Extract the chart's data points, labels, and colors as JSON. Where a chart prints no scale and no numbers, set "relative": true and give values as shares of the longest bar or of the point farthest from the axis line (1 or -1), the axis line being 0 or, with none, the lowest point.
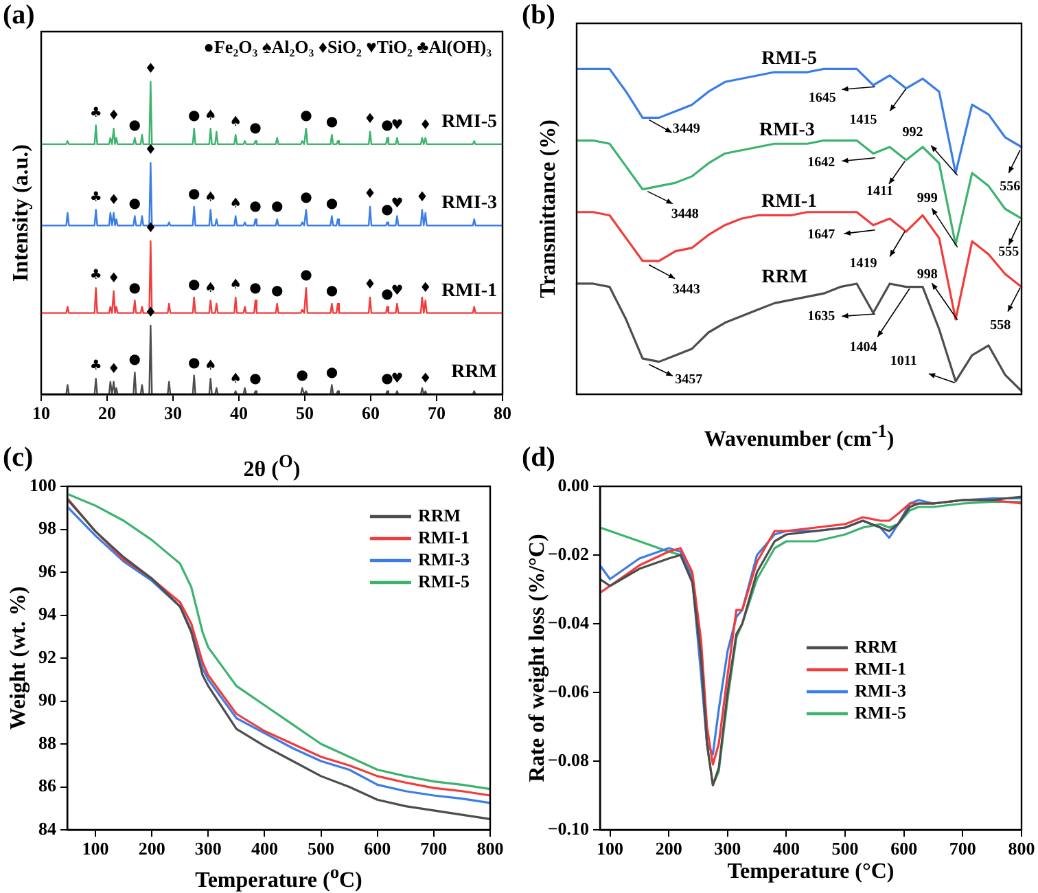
{
  "chart_data": [
    {
      "type": "line",
      "title": "(a)",
      "xlabel": "2θ ($^{O}$)",
      "ylabel": "Intensity (a.u.)",
      "relative": true,
      "tick_labels": "x",
      "legend": false,
      "xlim": [
        10,
        80
      ],
      "xticks": [
        10,
        20,
        30,
        40,
        50,
        60,
        70,
        80
      ],
      "x": [
        10,
        13.8,
        14,
        14.2,
        18.1,
        18.3,
        18.5,
        20.3,
        20.5,
        20.75,
        21,
        21.2,
        21.4,
        21.6,
        24,
        24.2,
        24.4,
        25.1,
        25.3,
        25.5,
        26.4,
        26.6,
        26.8,
        29.2,
        29.4,
        29.6,
        33,
        33.2,
        33.4,
        35.5,
        35.7,
        35.9,
        36.4,
        36.6,
        36.8,
        39.3,
        39.5,
        39.7,
        40.7,
        40.9,
        41.1,
        42.3,
        42.5,
        42.7,
        45.6,
        45.8,
        46,
        49.4,
        49.6,
        49.9,
        50.2,
        50.4,
        53.9,
        54.1,
        54.3,
        54.8,
        55,
        55.2,
        59.7,
        59.9,
        60.1,
        62.3,
        62.5,
        62.7,
        63.8,
        64,
        64.2,
        67.6,
        67.8,
        68.05,
        68.3,
        68.5,
        75.5,
        75.7,
        75.9,
        80
      ],
      "series": [
        {
          "name": "RRM",
          "color": "#4d4d4d",
          "values": [
            0,
            0,
            0.03,
            0,
            0,
            0.05,
            0,
            0,
            0.04,
            0,
            0.04,
            0,
            0.02,
            0,
            0,
            0.07,
            0,
            0,
            0.03,
            0,
            0,
            0.22,
            0,
            0,
            0.04,
            0,
            0,
            0.06,
            0,
            0,
            0.05,
            0,
            0,
            0.02,
            0,
            0,
            0.01,
            0,
            0,
            0.02,
            0,
            0,
            0.01,
            0,
            0,
            0,
            0,
            0,
            0.02,
            0,
            0.01,
            0,
            0,
            0.03,
            0,
            0,
            0.01,
            0,
            0,
            0,
            0,
            0,
            0.01,
            0,
            0,
            0.01,
            0,
            0,
            0.02,
            0,
            0.01,
            0,
            0,
            0.01,
            0,
            0
          ]
        },
        {
          "name": "RMI-1",
          "color": "#f23b3b",
          "values": [
            0.26,
            0.26,
            0.28,
            0.26,
            0.26,
            0.34,
            0.26,
            0.26,
            0.28,
            0.26,
            0.33,
            0.26,
            0.28,
            0.26,
            0.26,
            0.3,
            0.26,
            0.26,
            0.28,
            0.26,
            0.26,
            0.49,
            0.26,
            0.26,
            0.29,
            0.26,
            0.26,
            0.31,
            0.26,
            0.26,
            0.3,
            0.26,
            0.26,
            0.29,
            0.26,
            0.26,
            0.31,
            0.26,
            0.26,
            0.28,
            0.26,
            0.26,
            0.3,
            0.26,
            0.26,
            0.29,
            0.26,
            0.26,
            0.27,
            0.26,
            0.34,
            0.26,
            0.26,
            0.29,
            0.26,
            0.26,
            0.29,
            0.26,
            0.26,
            0.31,
            0.26,
            0.26,
            0.28,
            0.26,
            0.26,
            0.29,
            0.26,
            0.26,
            0.31,
            0.26,
            0.3,
            0.26,
            0.26,
            0.28,
            0.26,
            0.26
          ]
        },
        {
          "name": "RMI-3",
          "color": "#3a7de6",
          "values": [
            0.54,
            0.54,
            0.58,
            0.54,
            0.54,
            0.59,
            0.54,
            0.54,
            0.58,
            0.54,
            0.58,
            0.54,
            0.56,
            0.54,
            0.54,
            0.57,
            0.54,
            0.54,
            0.57,
            0.54,
            0.54,
            0.74,
            0.54,
            0.54,
            0.55,
            0.54,
            0.54,
            0.6,
            0.54,
            0.54,
            0.59,
            0.54,
            0.54,
            0.56,
            0.54,
            0.54,
            0.57,
            0.54,
            0.54,
            0.55,
            0.54,
            0.54,
            0.56,
            0.54,
            0.54,
            0.56,
            0.54,
            0.54,
            0.55,
            0.54,
            0.59,
            0.54,
            0.54,
            0.57,
            0.54,
            0.54,
            0.56,
            0.54,
            0.54,
            0.6,
            0.54,
            0.54,
            0.55,
            0.54,
            0.54,
            0.57,
            0.54,
            0.54,
            0.59,
            0.54,
            0.58,
            0.54,
            0.54,
            0.56,
            0.54,
            0.54
          ]
        },
        {
          "name": "RMI-5",
          "color": "#3cb36e",
          "values": [
            0.8,
            0.8,
            0.81,
            0.8,
            0.8,
            0.86,
            0.8,
            0.8,
            0.82,
            0.8,
            0.85,
            0.8,
            0.82,
            0.8,
            0.8,
            0.82,
            0.8,
            0.8,
            0.83,
            0.8,
            0.8,
            1,
            0.8,
            0.8,
            0.8,
            0.8,
            0.8,
            0.85,
            0.8,
            0.8,
            0.85,
            0.8,
            0.8,
            0.84,
            0.8,
            0.8,
            0.83,
            0.8,
            0.8,
            0.81,
            0.8,
            0.8,
            0.81,
            0.8,
            0.8,
            0.82,
            0.8,
            0.8,
            0.81,
            0.8,
            0.85,
            0.8,
            0.8,
            0.83,
            0.8,
            0.8,
            0.81,
            0.8,
            0.8,
            0.84,
            0.8,
            0.8,
            0.82,
            0.8,
            0.8,
            0.82,
            0.8,
            0.8,
            0.82,
            0.8,
            0.82,
            0.8,
            0.8,
            0.81,
            0.8,
            0.8
          ]
        }
      ],
      "annotations": [
        "●Fe₂O₃ ♠Al₂O₃ ♦SiO₂ ♥TiO₂ ♣Al(OH)₃",
        {
          "text": "♣",
          "x": 18.3,
          "y": 0.86
        },
        {
          "text": "♦",
          "x": 21,
          "y": 0.85
        },
        {
          "text": "●",
          "x": 24.2,
          "y": 0.82
        },
        {
          "text": "♦",
          "x": 26.6,
          "y": 1
        },
        {
          "text": "●",
          "x": 33.2,
          "y": 0.85
        },
        {
          "text": "♠",
          "x": 35.7,
          "y": 0.85
        },
        {
          "text": "♠",
          "x": 39.5,
          "y": 0.83
        },
        {
          "text": "●",
          "x": 42.5,
          "y": 0.81
        },
        {
          "text": "●",
          "x": 50.2,
          "y": 0.85
        },
        {
          "text": "●",
          "x": 54.1,
          "y": 0.83
        },
        {
          "text": "♦",
          "x": 59.9,
          "y": 0.84
        },
        {
          "text": "●",
          "x": 62.5,
          "y": 0.82
        },
        {
          "text": "♥",
          "x": 64,
          "y": 0.82
        },
        {
          "text": "♦",
          "x": 68.3,
          "y": 0.82
        },
        {
          "text": "♣",
          "x": 18.3,
          "y": 0.59
        },
        {
          "text": "♦",
          "x": 21,
          "y": 0.58
        },
        {
          "text": "●",
          "x": 24.2,
          "y": 0.57
        },
        {
          "text": "♦",
          "x": 26.6,
          "y": 0.74
        },
        {
          "text": "●",
          "x": 33.2,
          "y": 0.6
        },
        {
          "text": "♠",
          "x": 35.7,
          "y": 0.59
        },
        {
          "text": "♠",
          "x": 39.5,
          "y": 0.57
        },
        {
          "text": "●",
          "x": 42.5,
          "y": 0.56
        },
        {
          "text": "●",
          "x": 45.8,
          "y": 0.56
        },
        {
          "text": "●",
          "x": 50.2,
          "y": 0.59
        },
        {
          "text": "●",
          "x": 54.1,
          "y": 0.57
        },
        {
          "text": "♦",
          "x": 59.9,
          "y": 0.6
        },
        {
          "text": "●",
          "x": 62.5,
          "y": 0.55
        },
        {
          "text": "♥",
          "x": 64,
          "y": 0.57
        },
        {
          "text": "♦",
          "x": 67.8,
          "y": 0.59
        },
        {
          "text": "♣",
          "x": 18.3,
          "y": 0.34
        },
        {
          "text": "♦",
          "x": 21,
          "y": 0.33
        },
        {
          "text": "●",
          "x": 24.2,
          "y": 0.3
        },
        {
          "text": "♦",
          "x": 26.6,
          "y": 0.49
        },
        {
          "text": "●",
          "x": 33.2,
          "y": 0.31
        },
        {
          "text": "♠",
          "x": 35.7,
          "y": 0.3
        },
        {
          "text": "♠",
          "x": 39.5,
          "y": 0.31
        },
        {
          "text": "●",
          "x": 42.5,
          "y": 0.3
        },
        {
          "text": "●",
          "x": 45.8,
          "y": 0.29
        },
        {
          "text": "●",
          "x": 50.2,
          "y": 0.34
        },
        {
          "text": "●",
          "x": 54.1,
          "y": 0.29
        },
        {
          "text": "♦",
          "x": 59.9,
          "y": 0.31
        },
        {
          "text": "●",
          "x": 62.5,
          "y": 0.28
        },
        {
          "text": "♥",
          "x": 64,
          "y": 0.29
        },
        {
          "text": "♦",
          "x": 68.3,
          "y": 0.3
        },
        {
          "text": "♣",
          "x": 18.3,
          "y": 0.05
        },
        {
          "text": "♦",
          "x": 21,
          "y": 0.04
        },
        {
          "text": "●",
          "x": 24.2,
          "y": 0.07
        },
        {
          "text": "♦",
          "x": 26.6,
          "y": 0.22
        },
        {
          "text": "●",
          "x": 33.2,
          "y": 0.06
        },
        {
          "text": "♠",
          "x": 35.7,
          "y": 0.05
        },
        {
          "text": "♠",
          "x": 39.5,
          "y": 0.01
        },
        {
          "text": "●",
          "x": 42.5,
          "y": 0.01
        },
        {
          "text": "●",
          "x": 49.6,
          "y": 0.02
        },
        {
          "text": "●",
          "x": 54.1,
          "y": 0.03
        },
        {
          "text": "●",
          "x": 62.5,
          "y": 0.01
        },
        {
          "text": "♥",
          "x": 64,
          "y": 0.01
        },
        {
          "text": "♦",
          "x": 68.3,
          "y": 0.01
        }
      ]
    },
    {
      "type": "line",
      "title": "(b)",
      "xlabel": "Wavenumber (cm$^{-1}$)",
      "ylabel": "Transmittance (%)",
      "relative": true,
      "tick_labels": false,
      "legend": false,
      "categories": [
        null,
        null,
        null,
        null,
        null,
        null,
        null,
        null,
        null,
        null,
        null,
        null,
        null,
        null,
        null,
        null,
        null,
        null,
        null,
        null,
        null,
        null,
        null,
        null,
        null,
        null,
        null,
        null
      ],
      "series": [
        {
          "name": "RRM",
          "color": "#4d4d4d",
          "values": [
            0.34,
            0.34,
            0.33,
            0.23,
            0.11,
            0.1,
            0.12,
            0.14,
            0.19,
            0.22,
            0.24,
            0.26,
            0.28,
            0.29,
            0.3,
            0.31,
            0.33,
            0.34,
            0.25,
            0.34,
            0.33,
            0.33,
            0.2,
            0.04,
            0.12,
            0.15,
            0.06,
            0.01
          ]
        },
        {
          "name": "RMI-1",
          "color": "#f23b3b",
          "values": [
            0.56,
            0.56,
            0.55,
            0.48,
            0.41,
            0.41,
            0.44,
            0.45,
            0.49,
            0.52,
            0.54,
            0.55,
            0.55,
            0.55,
            0.56,
            0.56,
            0.56,
            0.56,
            0.52,
            0.54,
            0.5,
            0.55,
            0.48,
            0.23,
            0.47,
            0.43,
            0.37,
            0.33
          ]
        },
        {
          "name": "RMI-3",
          "color": "#3cb36e",
          "values": [
            0.78,
            0.78,
            0.77,
            0.7,
            0.63,
            0.64,
            0.65,
            0.67,
            0.71,
            0.74,
            0.75,
            0.76,
            0.77,
            0.77,
            0.77,
            0.78,
            0.78,
            0.78,
            0.74,
            0.76,
            0.72,
            0.76,
            0.71,
            0.46,
            0.68,
            0.64,
            0.57,
            0.54
          ]
        },
        {
          "name": "RMI-5",
          "color": "#3a7de6",
          "values": [
            1,
            1,
            1,
            0.93,
            0.85,
            0.85,
            0.87,
            0.89,
            0.93,
            0.96,
            0.97,
            0.98,
            0.99,
            0.99,
            0.99,
            1,
            1,
            1,
            0.95,
            0.98,
            0.94,
            0.97,
            0.93,
            0.68,
            0.89,
            0.86,
            0.79,
            0.76
          ]
        }
      ],
      "annotations": [
        "3449",
        "1645",
        "1415",
        "992",
        "556",
        "3448",
        "1642",
        "1411",
        "999",
        "555",
        "3443",
        "1647",
        "1419",
        "998",
        "558",
        "3457",
        "1635",
        "1404",
        "1011"
      ]
    },
    {
      "type": "line",
      "title": "(c)",
      "xlabel": "Temperature ($^{o}$C)",
      "ylabel": "Weight (wt. %)",
      "legend": "top right",
      "xlim": [
        50,
        800
      ],
      "xticks": [
        100,
        200,
        300,
        400,
        500,
        600,
        700,
        800
      ],
      "ylim": [
        84,
        100
      ],
      "yticks": [
        84,
        86,
        88,
        90,
        92,
        94,
        96,
        98,
        100
      ],
      "x": [
        50,
        100,
        150,
        200,
        250,
        270,
        290,
        300,
        350,
        400,
        450,
        500,
        550,
        600,
        650,
        700,
        750,
        800
      ],
      "series": [
        {
          "name": "RRM",
          "color": "#4d4d4d",
          "values": [
            99.4,
            97.9,
            96.7,
            95.7,
            94.4,
            93.2,
            91.2,
            90.7,
            88.7,
            87.9,
            87.2,
            86.5,
            86.0,
            85.4,
            85.1,
            84.9,
            84.7,
            84.5
          ]
        },
        {
          "name": "RMI-1",
          "color": "#f23b3b",
          "values": [
            99.45,
            97.9,
            96.6,
            95.7,
            94.6,
            93.6,
            91.8,
            91.2,
            89.4,
            88.6,
            88.0,
            87.4,
            87.0,
            86.5,
            86.2,
            85.95,
            85.8,
            85.6
          ]
        },
        {
          "name": "RMI-3",
          "color": "#3a7de6",
          "values": [
            99.05,
            97.7,
            96.5,
            95.6,
            94.4,
            93.3,
            91.5,
            91.0,
            89.2,
            88.5,
            87.8,
            87.2,
            86.8,
            86.1,
            85.8,
            85.6,
            85.45,
            85.25
          ]
        },
        {
          "name": "RMI-5",
          "color": "#3cb36e",
          "values": [
            99.65,
            99.1,
            98.4,
            97.5,
            96.4,
            95.3,
            93.2,
            92.5,
            90.7,
            89.8,
            88.9,
            88.0,
            87.4,
            86.8,
            86.5,
            86.25,
            86.1,
            85.9
          ]
        }
      ]
    },
    {
      "type": "line",
      "title": "(d)",
      "xlabel": "Temperature (°C)",
      "ylabel": "Rate of weight loss (%/°C)",
      "legend": "right",
      "xlim": [
        83,
        800
      ],
      "xticks": [
        100,
        200,
        300,
        400,
        500,
        600,
        700,
        800
      ],
      "ylim": [
        -0.1,
        0
      ],
      "yticks": [
        {
          "value": -0.1,
          "label": "−0.10"
        },
        {
          "value": -0.08,
          "label": "−0.08"
        },
        {
          "value": -0.06,
          "label": "−0.06"
        },
        {
          "value": -0.04,
          "label": "−0.04"
        },
        {
          "value": -0.02,
          "label": "−0.02"
        },
        {
          "value": 0,
          "label": "0.00"
        }
      ],
      "x": [
        83,
        100,
        150,
        200,
        220,
        240,
        255,
        265,
        275,
        285,
        300,
        315,
        325,
        350,
        380,
        400,
        450,
        500,
        530,
        560,
        575,
        590,
        610,
        625,
        650,
        700,
        750,
        800
      ],
      "series": [
        {
          "name": "RRM",
          "color": "#4d4d4d",
          "values": [
            -0.027,
            -0.029,
            -0.024,
            -0.021,
            -0.02,
            -0.028,
            -0.05,
            -0.075,
            -0.087,
            -0.082,
            -0.06,
            -0.043,
            -0.04,
            -0.025,
            -0.016,
            -0.014,
            -0.013,
            -0.012,
            -0.01,
            -0.012,
            -0.013,
            -0.011,
            -0.006,
            -0.005,
            -0.005,
            -0.004,
            -0.004,
            -0.003
          ]
        },
        {
          "name": "RMI-1",
          "color": "#f23b3b",
          "values": [
            -0.031,
            -0.029,
            -0.023,
            -0.019,
            -0.018,
            -0.025,
            -0.045,
            -0.07,
            -0.081,
            -0.075,
            -0.055,
            -0.036,
            -0.036,
            -0.022,
            -0.013,
            -0.013,
            -0.012,
            -0.011,
            -0.009,
            -0.01,
            -0.01,
            -0.008,
            -0.005,
            -0.005,
            -0.005,
            -0.004,
            -0.004,
            -0.005
          ]
        },
        {
          "name": "RMI-3",
          "color": "#3a7de6",
          "values": [
            -0.023,
            -0.027,
            -0.021,
            -0.018,
            -0.019,
            -0.027,
            -0.055,
            -0.075,
            -0.078,
            -0.065,
            -0.048,
            -0.038,
            -0.036,
            -0.02,
            -0.014,
            -0.013,
            -0.013,
            -0.012,
            -0.01,
            -0.012,
            -0.015,
            -0.011,
            -0.005,
            -0.004,
            -0.005,
            -0.004,
            -0.0035,
            -0.0035
          ]
        },
        {
          "name": "RMI-5",
          "color": "#3cb36e",
          "values": [
            -0.012,
            -0.013,
            -0.016,
            -0.019,
            -0.02,
            -0.026,
            -0.05,
            -0.075,
            -0.087,
            -0.083,
            -0.062,
            -0.044,
            -0.04,
            -0.027,
            -0.018,
            -0.016,
            -0.016,
            -0.014,
            -0.012,
            -0.011,
            -0.012,
            -0.011,
            -0.007,
            -0.006,
            -0.006,
            -0.005,
            -0.0045,
            -0.0045
          ]
        }
      ]
    }
  ]
}
